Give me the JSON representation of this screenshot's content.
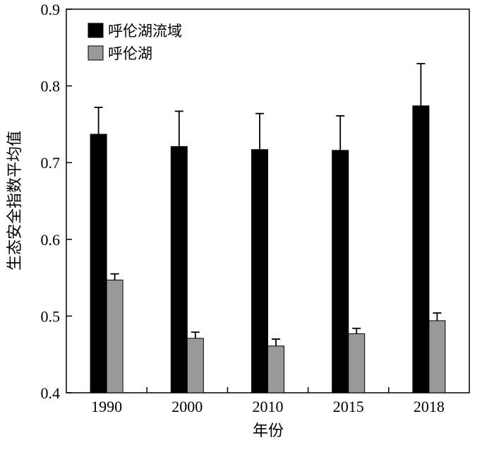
{
  "chart_data": {
    "type": "bar",
    "title": "",
    "xlabel": "年份",
    "ylabel": "生态安全指数平均值",
    "categories": [
      "1990",
      "2000",
      "2010",
      "2015",
      "2018"
    ],
    "ylim": [
      0.4,
      0.9
    ],
    "yticks": [
      "0.4",
      "0.5",
      "0.6",
      "0.7",
      "0.8",
      "0.9"
    ],
    "grid": false,
    "legend_position": "top-left",
    "series": [
      {
        "name": "呼伦湖流域",
        "color": "#000000",
        "values": [
          0.737,
          0.721,
          0.717,
          0.716,
          0.774
        ],
        "errors": [
          0.035,
          0.046,
          0.047,
          0.045,
          0.055
        ]
      },
      {
        "name": "呼伦湖",
        "color": "#999999",
        "values": [
          0.547,
          0.471,
          0.461,
          0.477,
          0.494
        ],
        "errors": [
          0.008,
          0.008,
          0.009,
          0.007,
          0.01
        ]
      }
    ]
  }
}
